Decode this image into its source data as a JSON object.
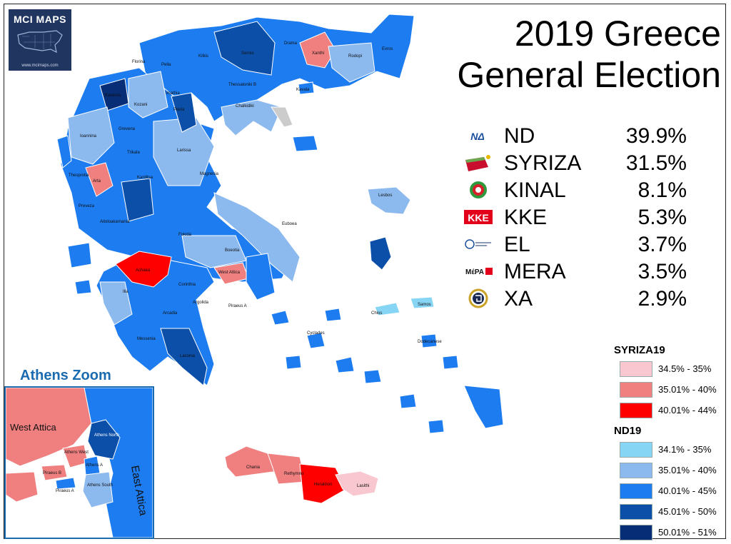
{
  "logo": {
    "text": "MCI MAPS",
    "url": "www.mcimaps.com"
  },
  "title": {
    "line1": "2019 Greece",
    "line2": "General Election"
  },
  "results": [
    {
      "icon": "nd-logo-icon",
      "party": "ND",
      "pct": "39.9%"
    },
    {
      "icon": "syriza-logo-icon",
      "party": "SYRIZA",
      "pct": "31.5%"
    },
    {
      "icon": "kinal-logo-icon",
      "party": "KINAL",
      "pct": "8.1%"
    },
    {
      "icon": "kke-logo-icon",
      "party": "KKE",
      "pct": "5.3%"
    },
    {
      "icon": "el-logo-icon",
      "party": "EL",
      "pct": "3.7%"
    },
    {
      "icon": "mera-logo-icon",
      "party": "MERA",
      "pct": "3.5%"
    },
    {
      "icon": "xa-logo-icon",
      "party": "XA",
      "pct": "2.9%"
    }
  ],
  "legend": {
    "syriza": {
      "title": "SYRIZA19",
      "bins": [
        {
          "label": "34.5% - 35%",
          "color": "#f9c7cf"
        },
        {
          "label": "35.01% - 40%",
          "color": "#f08080"
        },
        {
          "label": "40.01% - 44%",
          "color": "#ff0000"
        }
      ]
    },
    "nd": {
      "title": "ND19",
      "bins": [
        {
          "label": "34.1% - 35%",
          "color": "#86d5f5"
        },
        {
          "label": "35.01% - 40%",
          "color": "#8cb9ee"
        },
        {
          "label": "40.01% - 45%",
          "color": "#1c7cf0"
        },
        {
          "label": "45.01% - 50%",
          "color": "#0c4fa8"
        },
        {
          "label": "50.01% - 51%",
          "color": "#062d76"
        }
      ]
    }
  },
  "inset": {
    "title": "Athens Zoom",
    "labels": [
      "West Attica",
      "Athens West",
      "Athens North",
      "Athens A",
      "Piraeus B",
      "Piraeus A",
      "Athens South",
      "East Attica"
    ]
  },
  "map_labels": [
    "Florina",
    "Kilkis",
    "Serres",
    "Drama",
    "Xanthi",
    "Rodopi",
    "Evros",
    "Kastoria",
    "Kozani",
    "Imathia",
    "Pella",
    "Thessaloniki B",
    "Chalkidiki",
    "Kavala",
    "Pieria",
    "Ioannina",
    "Grevena",
    "Trikala",
    "Karditsa",
    "Larissa",
    "Magnesia",
    "Arta",
    "Preveza",
    "Lesbos",
    "Euboea",
    "Aitoloakarnania",
    "Fokida",
    "Boeotia",
    "Achaea",
    "Corinthia",
    "Argolida",
    "Ilia",
    "Arcadia",
    "Messenia",
    "Laconia",
    "Samos",
    "Chios",
    "Cyclades",
    "Dodecanese",
    "Chania",
    "Rethymno",
    "Heraklion",
    "Lasithi",
    "Piraeus A",
    "West Attica",
    "Thesprotia"
  ],
  "colors": {
    "nd_mid": "#1c7cf0",
    "nd_dark": "#0c4fa8",
    "nd_light": "#8cb9ee",
    "syriza_mid": "#f08080",
    "syriza_dark": "#ff0000"
  }
}
